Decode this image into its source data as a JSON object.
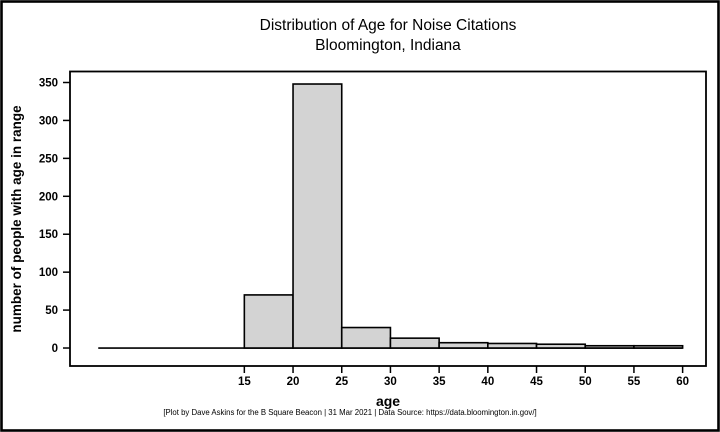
{
  "chart": {
    "title_line1": "Distribution of Age for Noise Citations",
    "title_line2": "Bloomington, Indiana",
    "xlabel": "age",
    "ylabel": "number of people with age in range",
    "caption": "[Plot by Dave Askins for the B Square Beacon | 31 Mar 2021 | Data Source: https://data.bloomington.in.gov/]"
  },
  "chart_data": {
    "type": "bar",
    "subtype": "histogram",
    "title": "Distribution of Age for Noise Citations",
    "subtitle": "Bloomington, Indiana",
    "xlabel": "age",
    "ylabel": "number of people with age in range",
    "bins": [
      {
        "range": [
          15,
          20
        ],
        "count": 70
      },
      {
        "range": [
          20,
          25
        ],
        "count": 348
      },
      {
        "range": [
          25,
          30
        ],
        "count": 27
      },
      {
        "range": [
          30,
          35
        ],
        "count": 13
      },
      {
        "range": [
          35,
          40
        ],
        "count": 7
      },
      {
        "range": [
          40,
          45
        ],
        "count": 6
      },
      {
        "range": [
          45,
          50
        ],
        "count": 5
      },
      {
        "range": [
          50,
          55
        ],
        "count": 3
      },
      {
        "range": [
          55,
          60
        ],
        "count": 3
      }
    ],
    "baseline_extent": [
      0,
      60
    ],
    "x_ticks": [
      15,
      20,
      25,
      30,
      35,
      40,
      45,
      50,
      55,
      60
    ],
    "y_ticks": [
      0,
      50,
      100,
      150,
      200,
      250,
      300,
      350
    ],
    "xlim": [
      -2.9,
      62.4
    ],
    "ylim": [
      -23.7,
      364.5
    ],
    "grid": false,
    "legend": false,
    "colors": {
      "bar_fill": "#d3d3d3",
      "bar_stroke": "#000000",
      "axis": "#000000",
      "background": "#ffffff",
      "outer_border": "#000000"
    },
    "caption": "[Plot by Dave Askins for the B Square Beacon | 31 Mar 2021 | Data Source: https://data.bloomington.in.gov/]"
  }
}
